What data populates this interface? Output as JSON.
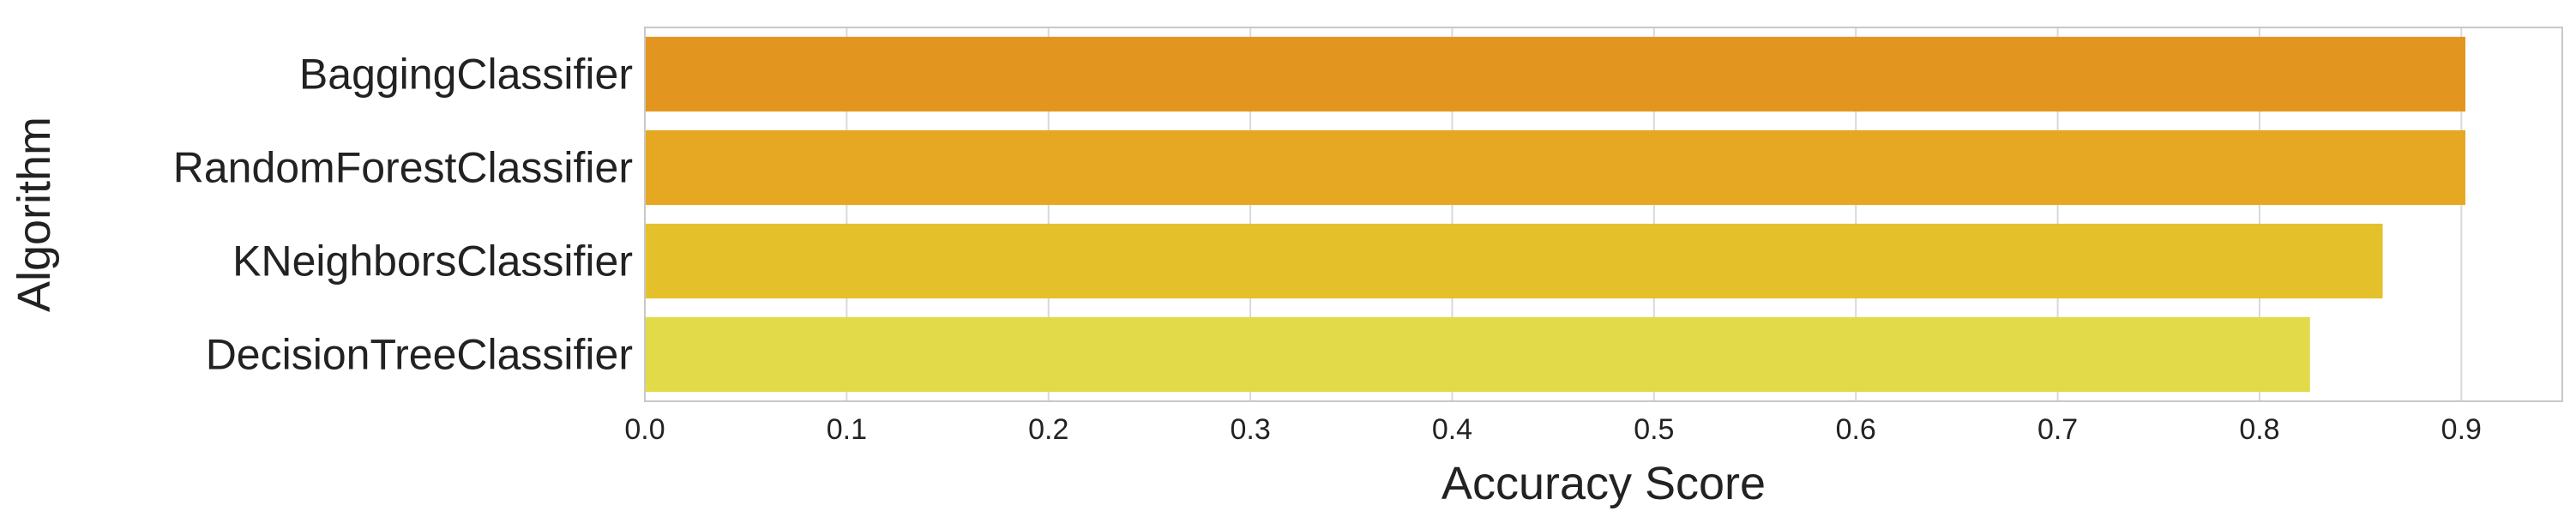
{
  "chart_data": {
    "type": "bar",
    "orientation": "horizontal",
    "categories": [
      "BaggingClassifier",
      "RandomForestClassifier",
      "KNeighborsClassifier",
      "DecisionTreeClassifier"
    ],
    "values": [
      0.902,
      0.902,
      0.861,
      0.825
    ],
    "bar_colors": [
      "#e3961f",
      "#e6a823",
      "#e4c12a",
      "#e3da4a"
    ],
    "xlabel": "Accuracy Score",
    "ylabel": "Algorithm",
    "xlim": [
      0,
      0.95
    ],
    "xticks": [
      0.0,
      0.1,
      0.2,
      0.3,
      0.4,
      0.5,
      0.6,
      0.7,
      0.8,
      0.9
    ],
    "xtick_labels": [
      "0.0",
      "0.1",
      "0.2",
      "0.3",
      "0.4",
      "0.5",
      "0.6",
      "0.7",
      "0.8",
      "0.9"
    ],
    "grid": true,
    "grid_color": "#d9d9d9",
    "frame_color": "#c8c8c8"
  }
}
